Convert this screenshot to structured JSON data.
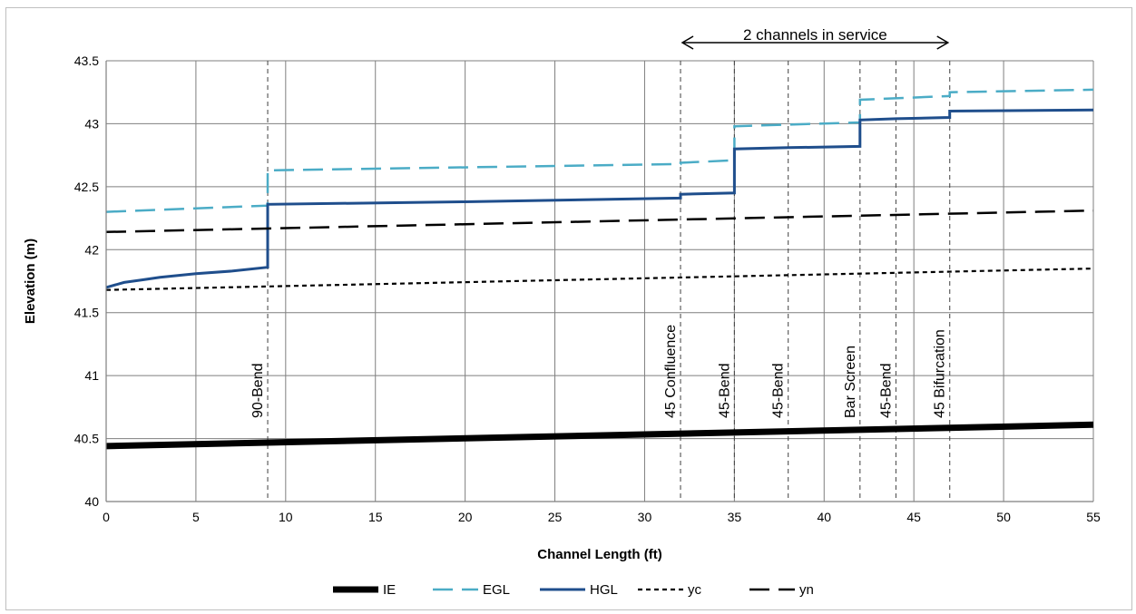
{
  "chart_data": {
    "type": "line",
    "title": "",
    "xlabel": "Channel Length (ft)",
    "ylabel": "Elevation (m)",
    "xlim": [
      0,
      55
    ],
    "ylim": [
      40,
      43.5
    ],
    "x_ticks": [
      "0",
      "5",
      "10",
      "15",
      "20",
      "25",
      "30",
      "35",
      "40",
      "45",
      "50",
      "55"
    ],
    "y_ticks": [
      "40",
      "40.5",
      "41",
      "41.5",
      "42",
      "42.5",
      "43",
      "43.5"
    ],
    "grid": true,
    "legend_position": "bottom",
    "series": [
      {
        "name": "IE",
        "color": "#000000",
        "style": "solid-thick",
        "points": [
          [
            0,
            40.44
          ],
          [
            55,
            40.61
          ]
        ]
      },
      {
        "name": "EGL",
        "color": "#4bacc6",
        "style": "long-dash",
        "points": [
          [
            0,
            42.3
          ],
          [
            9,
            42.35
          ],
          [
            9,
            42.63
          ],
          [
            32,
            42.68
          ],
          [
            32,
            42.69
          ],
          [
            35,
            42.71
          ],
          [
            35,
            42.98
          ],
          [
            42,
            43.01
          ],
          [
            42,
            43.19
          ],
          [
            47,
            43.22
          ],
          [
            47,
            43.25
          ],
          [
            55,
            43.27
          ]
        ]
      },
      {
        "name": "HGL",
        "color": "#1f4e8c",
        "style": "solid",
        "points": [
          [
            0,
            41.7
          ],
          [
            1,
            41.74
          ],
          [
            2,
            41.76
          ],
          [
            3,
            41.78
          ],
          [
            5,
            41.81
          ],
          [
            7,
            41.83
          ],
          [
            9,
            41.86
          ],
          [
            9,
            42.36
          ],
          [
            20,
            42.38
          ],
          [
            32,
            42.41
          ],
          [
            32,
            42.44
          ],
          [
            35,
            42.45
          ],
          [
            35,
            42.8
          ],
          [
            38,
            42.81
          ],
          [
            42,
            42.82
          ],
          [
            42,
            43.03
          ],
          [
            44,
            43.04
          ],
          [
            47,
            43.05
          ],
          [
            47,
            43.1
          ],
          [
            55,
            43.11
          ]
        ]
      },
      {
        "name": "yc",
        "color": "#000000",
        "style": "short-dash",
        "points": [
          [
            0,
            41.68
          ],
          [
            55,
            41.85
          ]
        ]
      },
      {
        "name": "yn",
        "color": "#000000",
        "style": "long-dash",
        "points": [
          [
            0,
            42.14
          ],
          [
            55,
            42.31
          ]
        ]
      }
    ],
    "vertical_markers": [
      {
        "x": 9,
        "label": "90-Bend"
      },
      {
        "x": 32,
        "label": "45 Confluence"
      },
      {
        "x": 35,
        "label": "45-Bend"
      },
      {
        "x": 38,
        "label": "45-Bend"
      },
      {
        "x": 42,
        "label": "Bar Screen"
      },
      {
        "x": 44,
        "label": "45-Bend"
      },
      {
        "x": 47,
        "label": "45 Bifurcation"
      }
    ],
    "annotations": [
      {
        "text": "2 channels in service",
        "x_from": 32,
        "x_to": 47
      }
    ]
  }
}
